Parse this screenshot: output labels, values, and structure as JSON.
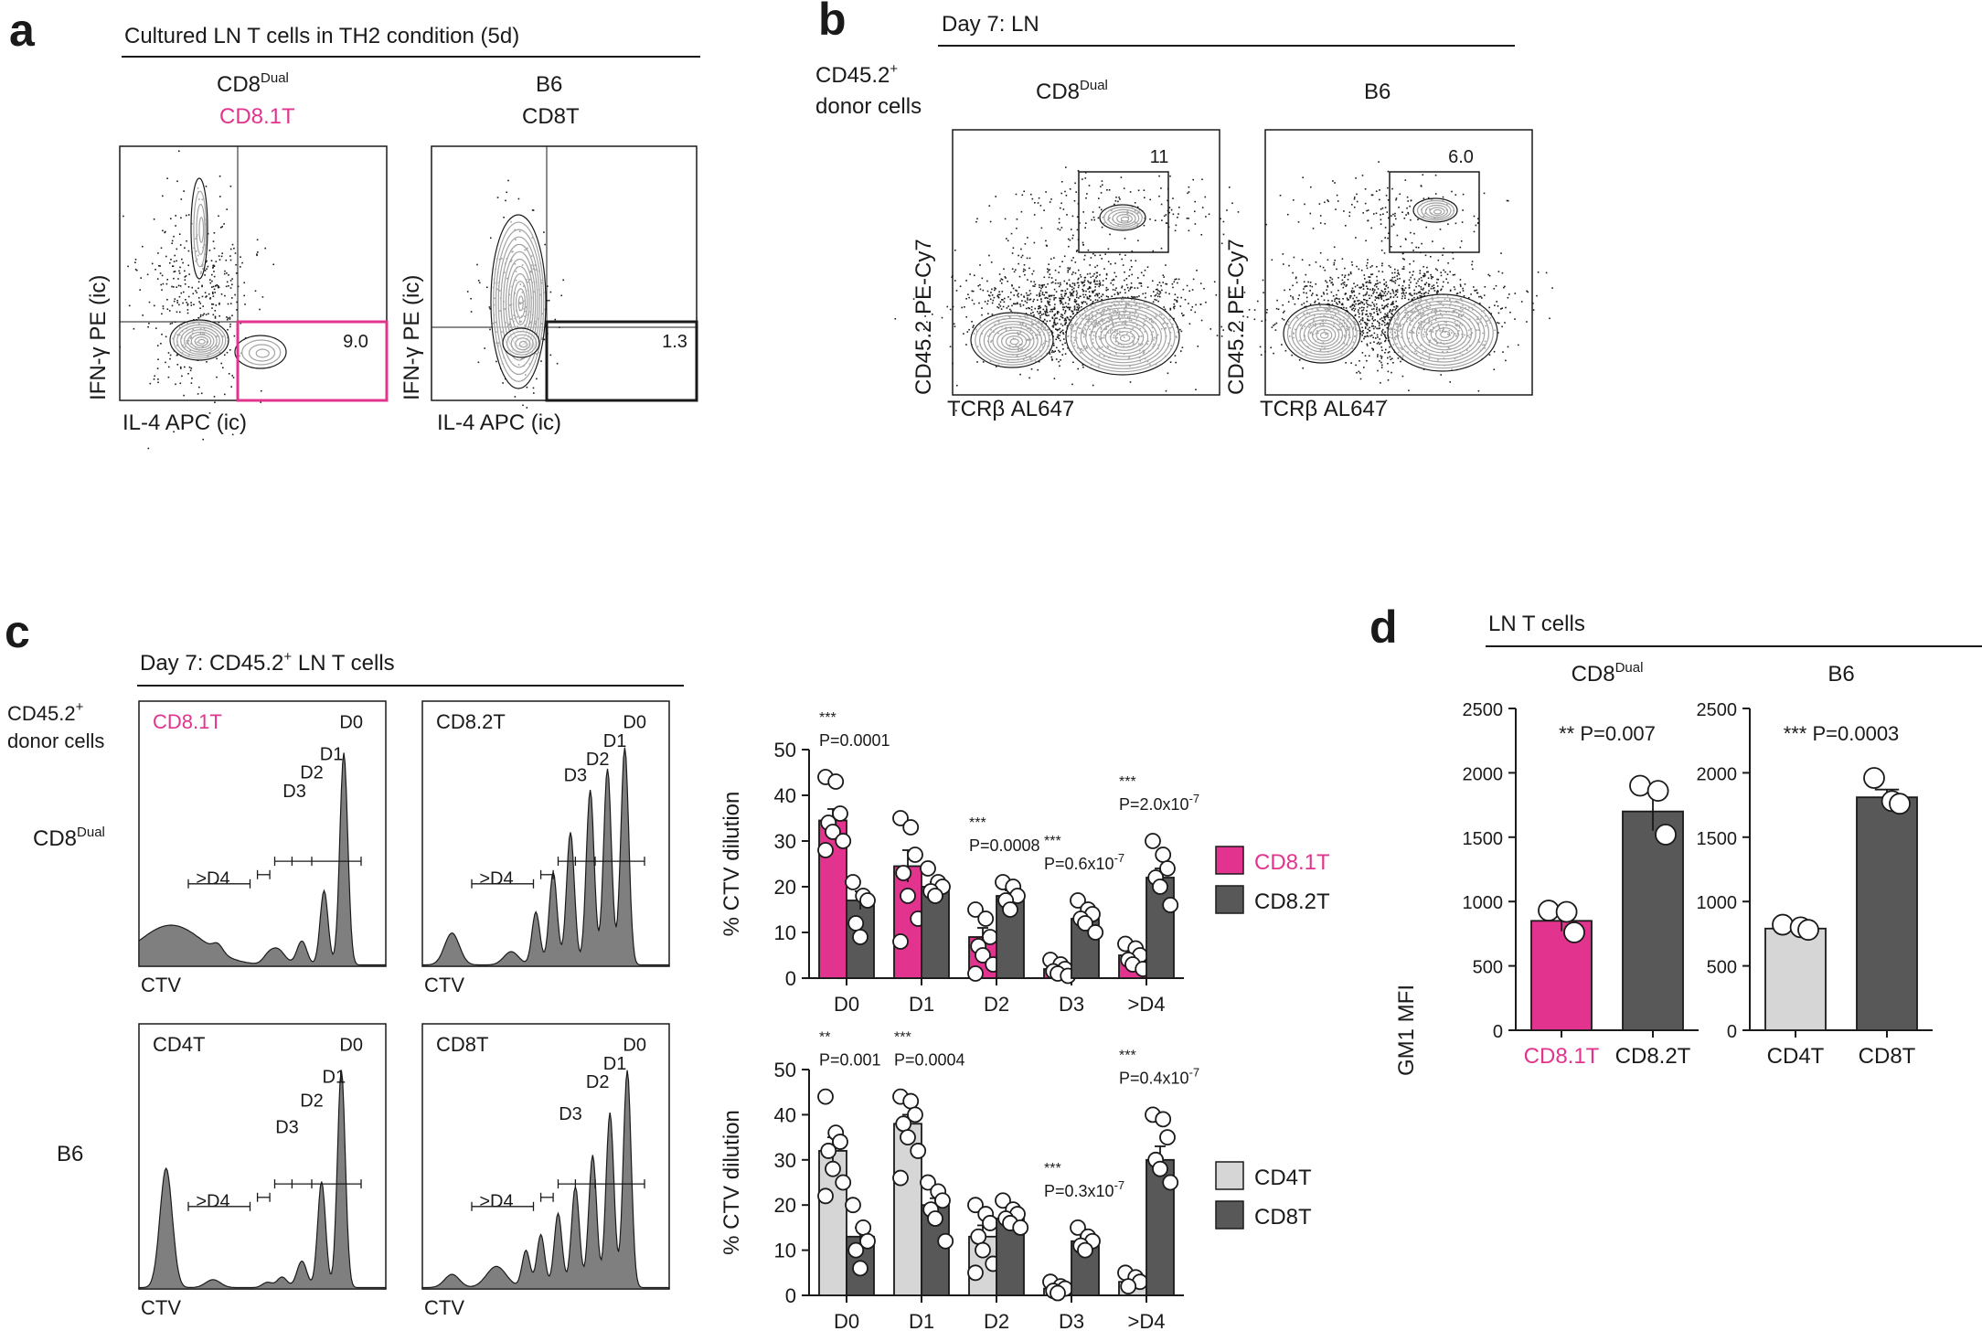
{
  "panel_labels": [
    "a",
    "b",
    "c",
    "d"
  ],
  "colors": {
    "magenta": "#e2348e",
    "dark": "#585858",
    "light": "#d6d6d6",
    "ink": "#1a1a1a"
  },
  "panel_a": {
    "header": "Cultured LN T cells in TH2 condition (5d)",
    "col1_title": "CD8",
    "col1_title_sup": "Dual",
    "col1_subtitle": "CD8.1T",
    "col2_title": "B6",
    "col2_subtitle": "CD8T",
    "y_axis": "IFN-γ PE (ic)",
    "x_axis": "IL-4 APC (ic)",
    "gate_values": [
      "9.0",
      "1.3"
    ]
  },
  "panel_b": {
    "header": "Day 7: LN",
    "row_label_1": "CD45.2",
    "row_label_1_sup": "+",
    "row_label_2": "donor cells",
    "col1_title": "CD8",
    "col1_title_sup": "Dual",
    "col2_title": "B6",
    "y_axis": "CD45.2 PE-Cy7",
    "x_axis": "TCRβ AL647",
    "gate_values": [
      "11",
      "6.0"
    ]
  },
  "panel_c": {
    "header": "Day 7: CD45.2",
    "header_sup": "+",
    "header_tail": " LN T cells",
    "row_label_1": "CD45.2",
    "row_label_1_sup": "+",
    "row_label_2": "donor cells",
    "row1_label": "CD8",
    "row1_label_sup": "Dual",
    "row2_label": "B6",
    "hist_titles": [
      "CD8.1T",
      "CD8.2T",
      "CD4T",
      "CD8T"
    ],
    "x_axis": "CTV",
    "division_labels": [
      "D0",
      "D1",
      "D2",
      "D3",
      ">D4"
    ]
  },
  "panel_d": {
    "header": "LN T cells",
    "y_axis": "GM1 MFI"
  },
  "chart_data": [
    {
      "type": "bar",
      "id": "c-top",
      "ylabel": "% CTV dilution",
      "ylim": [
        0,
        50
      ],
      "yticks": [
        0,
        10,
        20,
        30,
        40,
        50
      ],
      "categories": [
        "D0",
        "D1",
        "D2",
        "D3",
        ">D4"
      ],
      "series": [
        {
          "name": "CD8.1T",
          "color": "#e2348e",
          "values": [
            34.5,
            24.5,
            9,
            2,
            5
          ],
          "errors": [
            2.5,
            3.5,
            2,
            0.5,
            0.8
          ],
          "points": [
            [
              44,
              43,
              36,
              34,
              32,
              30,
              28
            ],
            [
              35,
              33,
              27,
              23,
              18,
              13,
              8
            ],
            [
              15,
              13,
              9,
              7,
              5,
              3,
              1
            ],
            [
              4,
              3,
              2,
              1.5,
              1,
              0.5
            ],
            [
              7.5,
              6.5,
              5,
              4,
              3,
              2
            ]
          ]
        },
        {
          "name": "CD8.2T",
          "color": "#585858",
          "values": [
            17,
            20,
            18,
            13,
            22
          ],
          "errors": [
            2,
            1,
            1.2,
            0.8,
            2
          ],
          "points": [
            [
              21,
              18,
              17,
              12,
              9
            ],
            [
              24,
              21,
              20,
              19,
              18
            ],
            [
              21,
              20,
              18,
              17,
              15
            ],
            [
              17,
              15,
              14,
              13,
              12,
              10
            ],
            [
              30,
              27,
              24,
              22,
              20,
              16
            ]
          ]
        }
      ],
      "annotations": [
        {
          "category": "D0",
          "stars": "***",
          "p": "P=0.0001"
        },
        {
          "category": "D2",
          "stars": "***",
          "p": "P=0.0008"
        },
        {
          "category": "D3",
          "stars": "***",
          "p": "P=0.6x10",
          "p_exp": "-7"
        },
        {
          "category": ">D4",
          "stars": "***",
          "p": "P=2.0x10",
          "p_exp": "-7"
        }
      ]
    },
    {
      "type": "bar",
      "id": "c-bottom",
      "ylabel": "% CTV dilution",
      "ylim": [
        0,
        50
      ],
      "yticks": [
        0,
        10,
        20,
        30,
        40,
        50
      ],
      "categories": [
        "D0",
        "D1",
        "D2",
        "D3",
        ">D4"
      ],
      "series": [
        {
          "name": "CD4T",
          "color": "#d6d6d6",
          "values": [
            32,
            38,
            13,
            1.5,
            3
          ],
          "errors": [
            3,
            2,
            2.5,
            0.5,
            0.8
          ],
          "points": [
            [
              44,
              36,
              34,
              32,
              28,
              25,
              22
            ],
            [
              44,
              43,
              40,
              38,
              35,
              32,
              26
            ],
            [
              20,
              18,
              16,
              13,
              10,
              7,
              5
            ],
            [
              3,
              2,
              1.5,
              1,
              0.5
            ],
            [
              5,
              4,
              3,
              2
            ]
          ]
        },
        {
          "name": "CD8T",
          "color": "#585858",
          "values": [
            13,
            20,
            17,
            12,
            30
          ],
          "errors": [
            2,
            1.5,
            1,
            1,
            3
          ],
          "points": [
            [
              20,
              15,
              12,
              10,
              6
            ],
            [
              25,
              23,
              21,
              19,
              17,
              12
            ],
            [
              21,
              19,
              18,
              17,
              16,
              15
            ],
            [
              15,
              13,
              12,
              11,
              10
            ],
            [
              40,
              39,
              35,
              30,
              28,
              25
            ]
          ]
        }
      ],
      "annotations": [
        {
          "category": "D0",
          "stars": "**",
          "p": "P=0.001"
        },
        {
          "category": "D1",
          "stars": "***",
          "p": "P=0.0004"
        },
        {
          "category": "D3",
          "stars": "***",
          "p": "P=0.3x10",
          "p_exp": "-7"
        },
        {
          "category": ">D4",
          "stars": "***",
          "p": "P=0.4x10",
          "p_exp": "-7"
        }
      ]
    },
    {
      "type": "bar",
      "id": "d-left",
      "title": "CD8",
      "title_sup": "Dual",
      "ylabel": "GM1 MFI",
      "ylim": [
        0,
        2500
      ],
      "yticks": [
        0,
        500,
        1000,
        1500,
        2000,
        2500
      ],
      "categories": [
        "CD8.1T",
        "CD8.2T"
      ],
      "values": [
        850,
        1700
      ],
      "errors": [
        80,
        150
      ],
      "colors": [
        "#e2348e",
        "#585858"
      ],
      "points": [
        [
          930,
          920,
          760
        ],
        [
          1900,
          1860,
          1520
        ]
      ],
      "annotation": {
        "stars": "**",
        "p": "P=0.007"
      }
    },
    {
      "type": "bar",
      "id": "d-right",
      "title": "B6",
      "ylabel": "",
      "ylim": [
        0,
        2500
      ],
      "yticks": [
        0,
        500,
        1000,
        1500,
        2000,
        2500
      ],
      "categories": [
        "CD4T",
        "CD8T"
      ],
      "values": [
        790,
        1810
      ],
      "errors": [
        20,
        60
      ],
      "colors": [
        "#d6d6d6",
        "#585858"
      ],
      "points": [
        [
          820,
          800,
          780
        ],
        [
          1960,
          1780,
          1760
        ]
      ],
      "annotation": {
        "stars": "***",
        "p": "P=0.0003"
      }
    }
  ]
}
